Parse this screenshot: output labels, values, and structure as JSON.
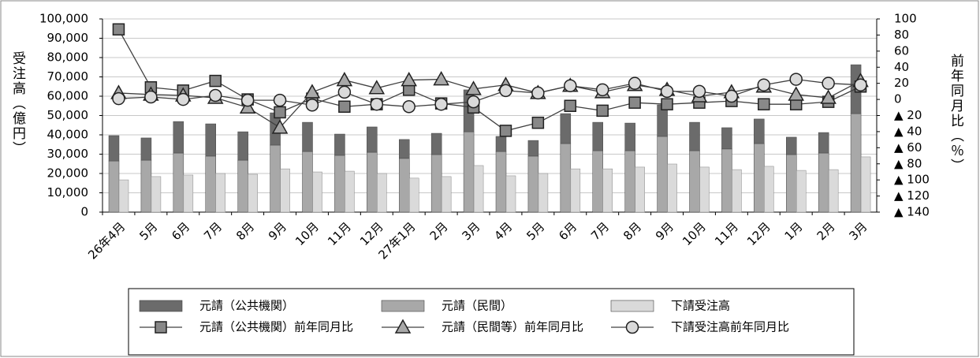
{
  "chart_data": {
    "type": "bar",
    "y_label": "受注高（億円）",
    "y2_label": "前年同月比（％）",
    "categories": [
      "26年4月",
      "5月",
      "6月",
      "7月",
      "8月",
      "9月",
      "10月",
      "11月",
      "12月",
      "27年1月",
      "2月",
      "3月",
      "4月",
      "5月",
      "6月",
      "7月",
      "8月",
      "9月",
      "10月",
      "11月",
      "12月",
      "1月",
      "2月",
      "3月"
    ],
    "ylim": [
      0,
      100000
    ],
    "yticks": [
      0,
      {
        "value": 10000,
        "label": "10,000"
      },
      {
        "value": 20000,
        "label": "20,000"
      },
      {
        "value": 30000,
        "label": "30,000"
      },
      {
        "value": 40000,
        "label": "40,000"
      },
      {
        "value": 50000,
        "label": "50,000"
      },
      {
        "value": 60000,
        "label": "60,000"
      },
      {
        "value": 70000,
        "label": "70,000"
      },
      {
        "value": 80000,
        "label": "80,000"
      },
      {
        "value": 90000,
        "label": "90,000"
      },
      {
        "value": 100000,
        "label": "100,000"
      }
    ],
    "y2lim": [
      -140,
      100
    ],
    "y2ticks": [
      100,
      80,
      60,
      40,
      20,
      0,
      {
        "value": -20,
        "label": "▲ 20"
      },
      {
        "value": -40,
        "label": "▲ 40"
      },
      {
        "value": -60,
        "label": "▲ 60"
      },
      {
        "value": -80,
        "label": "▲ 80"
      },
      {
        "value": -100,
        "label": "▲ 100"
      },
      {
        "value": -120,
        "label": "▲ 120"
      },
      {
        "value": -140,
        "label": "▲ 140"
      }
    ],
    "grid": true,
    "series": [
      {
        "name": "元請（公共機関）",
        "type": "bar",
        "stacked": true,
        "color": "#6b6b6b",
        "values": [
          13100,
          11500,
          16300,
          16700,
          14700,
          16700,
          15100,
          11000,
          13100,
          9800,
          11000,
          21700,
          7800,
          8100,
          15500,
          14700,
          14300,
          16300,
          14700,
          11000,
          12700,
          9000,
          10600,
          25300
        ]
      },
      {
        "name": "元請（民間）",
        "type": "bar",
        "stacked": true,
        "color": "#a8a8a8",
        "values": [
          26500,
          26900,
          30600,
          29000,
          26900,
          34700,
          31400,
          29400,
          31000,
          27800,
          29800,
          41600,
          31400,
          29000,
          35500,
          31800,
          31800,
          39200,
          31800,
          32700,
          35500,
          29800,
          30600,
          51000
        ]
      },
      {
        "name": "下請受注高",
        "type": "bar",
        "stacked": false,
        "color": "#dadada",
        "values": [
          16700,
          18400,
          19200,
          20000,
          19600,
          22400,
          20800,
          21200,
          20000,
          17600,
          18400,
          24100,
          18800,
          20000,
          22400,
          22400,
          23300,
          24900,
          23300,
          22000,
          23700,
          21600,
          22000,
          28600
        ]
      },
      {
        "name": "元請（公共機関）前年同月比",
        "type": "line",
        "axis": "y2",
        "marker": "square",
        "color": "#888888",
        "values": [
          87,
          15,
          11,
          23,
          0,
          -16,
          1,
          -9,
          -6,
          12,
          -5,
          -10,
          -39,
          -29,
          -8,
          -14,
          -4,
          -6,
          -4,
          -2,
          -6,
          -6,
          -3,
          16
        ]
      },
      {
        "name": "元請（民間等）前年同月比",
        "type": "line",
        "axis": "y2",
        "marker": "triangle",
        "color": "#a8a8a8",
        "values": [
          8,
          6,
          5,
          2,
          -10,
          -35,
          9,
          24,
          14,
          24,
          25,
          13,
          18,
          8,
          17,
          9,
          18,
          12,
          4,
          9,
          16,
          6,
          2,
          23
        ]
      },
      {
        "name": "下請受注高前年同月比",
        "type": "line",
        "axis": "y2",
        "marker": "circle",
        "color": "#dadada",
        "values": [
          1,
          3,
          0,
          5,
          -1,
          -1,
          -7,
          9,
          -6,
          -9,
          -6,
          -3,
          11,
          8,
          17,
          12,
          20,
          10,
          10,
          4,
          18,
          25,
          20,
          18
        ]
      }
    ]
  }
}
